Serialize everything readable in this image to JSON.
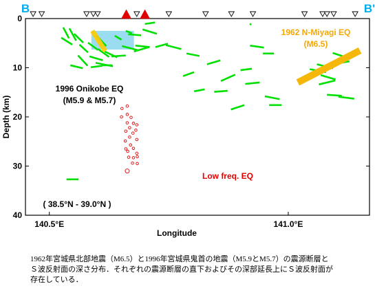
{
  "chart_data": {
    "type": "scatter",
    "section_labels": {
      "left": "B",
      "right": "B'"
    },
    "xlabel": "Longitude",
    "ylabel": "Depth (km)",
    "xlim": [
      140.45,
      141.17
    ],
    "ylim": [
      40,
      0
    ],
    "x_ticks": [
      {
        "value": 140.5,
        "label": "140.5°E"
      },
      {
        "value": 141.0,
        "label": "141.0°E"
      }
    ],
    "y_ticks": [
      0,
      10,
      20,
      30,
      40
    ],
    "annotations": {
      "onikobe": {
        "line1": "1996 Onikobe EQ",
        "line2": "(M5.9 & M5.7)"
      },
      "miyagi": {
        "line1": "1962 N-Miyagi EQ",
        "line2": "(M6.5)"
      },
      "lowfreq": "Low freq. EQ",
      "range": "( 38.5°N - 39.0°N )"
    },
    "stations_open": [
      140.466,
      140.484,
      140.578,
      140.592,
      140.601,
      140.683,
      140.75,
      140.827,
      140.881,
      140.926,
      141.034,
      141.072,
      141.081,
      141.095,
      141.14
    ],
    "stations_volcano": [
      140.661,
      140.7
    ],
    "onikobe_fault_plane": {
      "x": [
        140.588,
        140.677
      ],
      "depth": [
        2.5,
        6.3
      ]
    },
    "onikobe_fault": {
      "x": [
        140.59,
        140.617
      ],
      "depth": [
        2.5,
        6.6
      ]
    },
    "miyagi_fault": {
      "x": [
        141.02,
        141.15
      ],
      "depth": [
        13,
        6.5
      ]
    },
    "reflectors": [
      [
        [
          140.529,
          1.8
        ],
        [
          140.541,
          4.0
        ]
      ],
      [
        [
          140.542,
          2.0
        ],
        [
          140.556,
          4.5
        ]
      ],
      [
        [
          140.525,
          3.9
        ],
        [
          140.548,
          5.3
        ]
      ],
      [
        [
          140.552,
          3.1
        ],
        [
          140.571,
          4.9
        ]
      ],
      [
        [
          140.563,
          5.3
        ],
        [
          140.581,
          6.9
        ]
      ],
      [
        [
          140.581,
          4.9
        ],
        [
          140.602,
          6.4
        ]
      ],
      [
        [
          140.599,
          3.5
        ],
        [
          140.619,
          5.6
        ]
      ],
      [
        [
          140.602,
          6.2
        ],
        [
          140.625,
          7.8
        ]
      ],
      [
        [
          140.616,
          6.7
        ],
        [
          140.642,
          7.9
        ]
      ],
      [
        [
          140.584,
          7.7
        ],
        [
          140.612,
          8.5
        ]
      ],
      [
        [
          140.597,
          9.0
        ],
        [
          140.633,
          9.7
        ]
      ],
      [
        [
          140.63,
          7.7
        ],
        [
          140.66,
          7.5
        ]
      ],
      [
        [
          140.652,
          5.6
        ],
        [
          140.684,
          6.4
        ]
      ],
      [
        [
          140.68,
          5.5
        ],
        [
          140.71,
          5.8
        ]
      ],
      [
        [
          140.677,
          6.7
        ],
        [
          140.709,
          5.8
        ]
      ],
      [
        [
          140.665,
          3.2
        ],
        [
          140.692,
          3.4
        ]
      ],
      [
        [
          140.695,
          2.2
        ],
        [
          140.725,
          3.1
        ]
      ],
      [
        [
          140.7,
          1.1
        ],
        [
          140.721,
          0.8
        ]
      ],
      [
        [
          140.637,
          3.5
        ],
        [
          140.651,
          4.3
        ]
      ],
      [
        [
          140.66,
          2.5
        ],
        [
          140.673,
          3.0
        ]
      ],
      [
        [
          140.56,
          7.5
        ],
        [
          140.58,
          9.6
        ]
      ],
      [
        [
          140.544,
          9.5
        ],
        [
          140.57,
          10.1
        ]
      ],
      [
        [
          140.587,
          9.9
        ],
        [
          140.611,
          9.6
        ]
      ],
      [
        [
          140.611,
          9.5
        ],
        [
          140.632,
          9.5
        ]
      ],
      [
        [
          140.722,
          5.8
        ],
        [
          140.748,
          5.1
        ]
      ],
      [
        [
          140.744,
          5.4
        ],
        [
          140.776,
          6.2
        ]
      ],
      [
        [
          140.787,
          7.1
        ],
        [
          140.814,
          7.6
        ]
      ],
      [
        [
          140.78,
          11.7
        ],
        [
          140.803,
          10.9
        ]
      ],
      [
        [
          140.83,
          9.3
        ],
        [
          140.858,
          8.5
        ]
      ],
      [
        [
          140.803,
          14.8
        ],
        [
          140.825,
          14.4
        ]
      ],
      [
        [
          140.845,
          14.9
        ],
        [
          140.873,
          14.7
        ]
      ],
      [
        [
          140.859,
          12.7
        ],
        [
          140.889,
          11.4
        ]
      ],
      [
        [
          140.9,
          10.5
        ],
        [
          140.924,
          10.2
        ]
      ],
      [
        [
          140.91,
          13.3
        ],
        [
          140.94,
          13.0
        ]
      ],
      [
        [
          140.88,
          18.5
        ],
        [
          140.908,
          17.6
        ]
      ],
      [
        [
          140.92,
          5.5
        ],
        [
          140.949,
          5.9
        ]
      ],
      [
        [
          140.947,
          7.1
        ],
        [
          140.97,
          7.1
        ]
      ],
      [
        [
          140.951,
          15.8
        ],
        [
          140.982,
          16.4
        ]
      ],
      [
        [
          140.96,
          17.6
        ],
        [
          140.986,
          17.6
        ]
      ],
      [
        [
          140.92,
          1.3
        ],
        [
          140.922,
          1.0
        ]
      ],
      [
        [
          141.045,
          10.3
        ],
        [
          141.079,
          10.9
        ]
      ],
      [
        [
          141.06,
          9.3
        ],
        [
          141.094,
          10.1
        ]
      ],
      [
        [
          141.068,
          11.5
        ],
        [
          141.099,
          12.4
        ]
      ],
      [
        [
          141.064,
          13.4
        ],
        [
          141.098,
          12.6
        ]
      ],
      [
        [
          141.093,
          7.0
        ],
        [
          141.125,
          8.0
        ]
      ],
      [
        [
          141.109,
          9.0
        ],
        [
          141.128,
          8.7
        ]
      ],
      [
        [
          141.081,
          15.5
        ],
        [
          141.112,
          15.7
        ]
      ],
      [
        [
          141.105,
          15.9
        ],
        [
          141.138,
          16.3
        ]
      ],
      [
        [
          140.536,
          32.7
        ],
        [
          140.561,
          32.7
        ]
      ]
    ],
    "low_freq_eq": [
      [
        140.652,
        18.3
      ],
      [
        140.663,
        17.8
      ],
      [
        140.651,
        20.0
      ],
      [
        140.663,
        19.5
      ],
      [
        140.671,
        20.1
      ],
      [
        140.663,
        21.2
      ],
      [
        140.676,
        21.3
      ],
      [
        140.683,
        21.6
      ],
      [
        140.668,
        22.2
      ],
      [
        140.681,
        22.7
      ],
      [
        140.66,
        22.9
      ],
      [
        140.675,
        23.3
      ],
      [
        140.668,
        24.1
      ],
      [
        140.683,
        24.6
      ],
      [
        140.659,
        24.9
      ],
      [
        140.67,
        25.7
      ],
      [
        140.66,
        26.5
      ],
      [
        140.676,
        26.4
      ],
      [
        140.664,
        27.0
      ],
      [
        140.683,
        27.4
      ],
      [
        140.666,
        28.2
      ],
      [
        140.676,
        28.3
      ],
      [
        140.684,
        28.1
      ],
      [
        140.674,
        29.4
      ],
      [
        140.684,
        29.5
      ],
      [
        140.663,
        31.0
      ]
    ]
  },
  "caption": {
    "line1": "1962年宮城県北部地震（M6.5）と1996年宮城県鬼首の地震（M5.9とM5.7）の震源断層と",
    "line2": "Ｓ波反射面の深さ分布．それぞれの震源断層の直下およびその深部延長上にＳ波反射面が",
    "line3": "存在している．"
  },
  "colors": {
    "section_label": "#00aeef",
    "reflector": "#00e000",
    "low_freq_eq": "#e00000",
    "onikobe_plane": "#8fd8ee",
    "fault": "#ffcc00",
    "miyagi_fault": "#f5b80a",
    "miyagi_text": "#f5a800",
    "lowfreq_text": "#e00000",
    "volcano": "#e00000"
  }
}
